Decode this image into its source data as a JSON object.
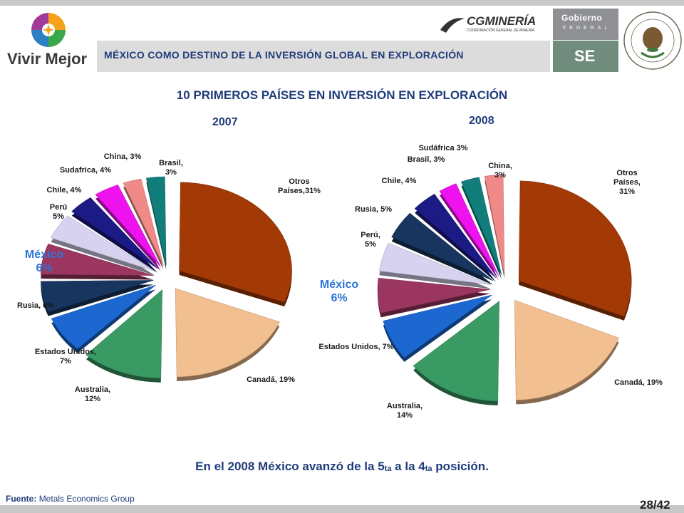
{
  "header": {
    "logo_text": "Vivir Mejor",
    "title": "MÉXICO COMO DESTINO DE LA INVERSIÓN GLOBAL EN EXPLORACIÓN",
    "cgm_text": "CGMINERÍA",
    "cgm_sub": "COORDINACIÓN GENERAL DE MINERÍA",
    "gob_line1": "Gobierno",
    "gob_line2": "FEDERAL",
    "se_text": "SE"
  },
  "colors": {
    "Otros Países": "#a33a06",
    "Canadá": "#f2bf90",
    "Australia": "#3a9a64",
    "Estados Unidos": "#1c67d0",
    "Rusia": "#17355e",
    "México": "#9b3660",
    "Perú": "#d6d2ef",
    "Chile": "#1c1a84",
    "Sudáfrica": "#ee12ee",
    "China": "#f08a88",
    "Brasil": "#127e7c",
    "mexico_label": "#2e75d8",
    "title": "#1f3c7a"
  },
  "main_title": "10 PRIMEROS PAÍSES EN INVERSIÓN EN EXPLORACIÓN",
  "chart_data": [
    {
      "type": "pie",
      "title": "2007",
      "slices": [
        {
          "key": "Otros Países",
          "value": 31,
          "label": [
            "Otros",
            "Países,31%"
          ]
        },
        {
          "key": "Canadá",
          "value": 19,
          "label": [
            "Canadá, 19%"
          ]
        },
        {
          "key": "Australia",
          "value": 12,
          "label": [
            "Australia,",
            "12%"
          ]
        },
        {
          "key": "Estados Unidos",
          "value": 7,
          "label": [
            "Estados Unidos,",
            "7%"
          ]
        },
        {
          "key": "Rusia",
          "value": 6,
          "label": [
            "Rusia, 6%"
          ]
        },
        {
          "key": "México",
          "value": 6,
          "label": [
            "México",
            "6%"
          ]
        },
        {
          "key": "Perú",
          "value": 5,
          "label": [
            "Perú",
            "5%"
          ]
        },
        {
          "key": "Chile",
          "value": 4,
          "label": [
            "Chile, 4%"
          ]
        },
        {
          "key": "Sudáfrica",
          "value": 4,
          "label": [
            "Sudafrica, 4%"
          ]
        },
        {
          "key": "China",
          "value": 3,
          "label": [
            "China, 3%"
          ]
        },
        {
          "key": "Brasil",
          "value": 3,
          "label": [
            "Brasil,",
            "3%"
          ]
        }
      ]
    },
    {
      "type": "pie",
      "title": "2008",
      "slices": [
        {
          "key": "Otros Países",
          "value": 31,
          "label": [
            "Otros",
            "Países,",
            "31%"
          ]
        },
        {
          "key": "Canadá",
          "value": 19,
          "label": [
            "Canadá, 19%"
          ]
        },
        {
          "key": "Australia",
          "value": 14,
          "label": [
            "Australia,",
            "14%"
          ]
        },
        {
          "key": "Estados Unidos",
          "value": 7,
          "label": [
            "Estados Unidos, 7%"
          ]
        },
        {
          "key": "México",
          "value": 6,
          "label": [
            "México",
            "6%"
          ]
        },
        {
          "key": "Perú",
          "value": 5,
          "label": [
            "Perú,",
            "5%"
          ]
        },
        {
          "key": "Rusia",
          "value": 5,
          "label": [
            "Rusia, 5%"
          ]
        },
        {
          "key": "Chile",
          "value": 4,
          "label": [
            "Chile, 4%"
          ]
        },
        {
          "key": "Sudáfrica",
          "value": 3,
          "label": [
            "Sudáfrica 3%"
          ]
        },
        {
          "key": "Brasil",
          "value": 3,
          "label": [
            "Brasil, 3%"
          ]
        },
        {
          "key": "China",
          "value": 3,
          "label": [
            "China,",
            "3%"
          ]
        }
      ]
    }
  ],
  "conclusion": {
    "part1": "En el 2008 México avanzó de la 5",
    "sub1": "ta",
    "part2": " a la 4",
    "sub2": "ta",
    "part3": " posición."
  },
  "footer": {
    "source_label": "Fuente:",
    "source_value": "Metals Economics Group",
    "page": "28/42"
  }
}
